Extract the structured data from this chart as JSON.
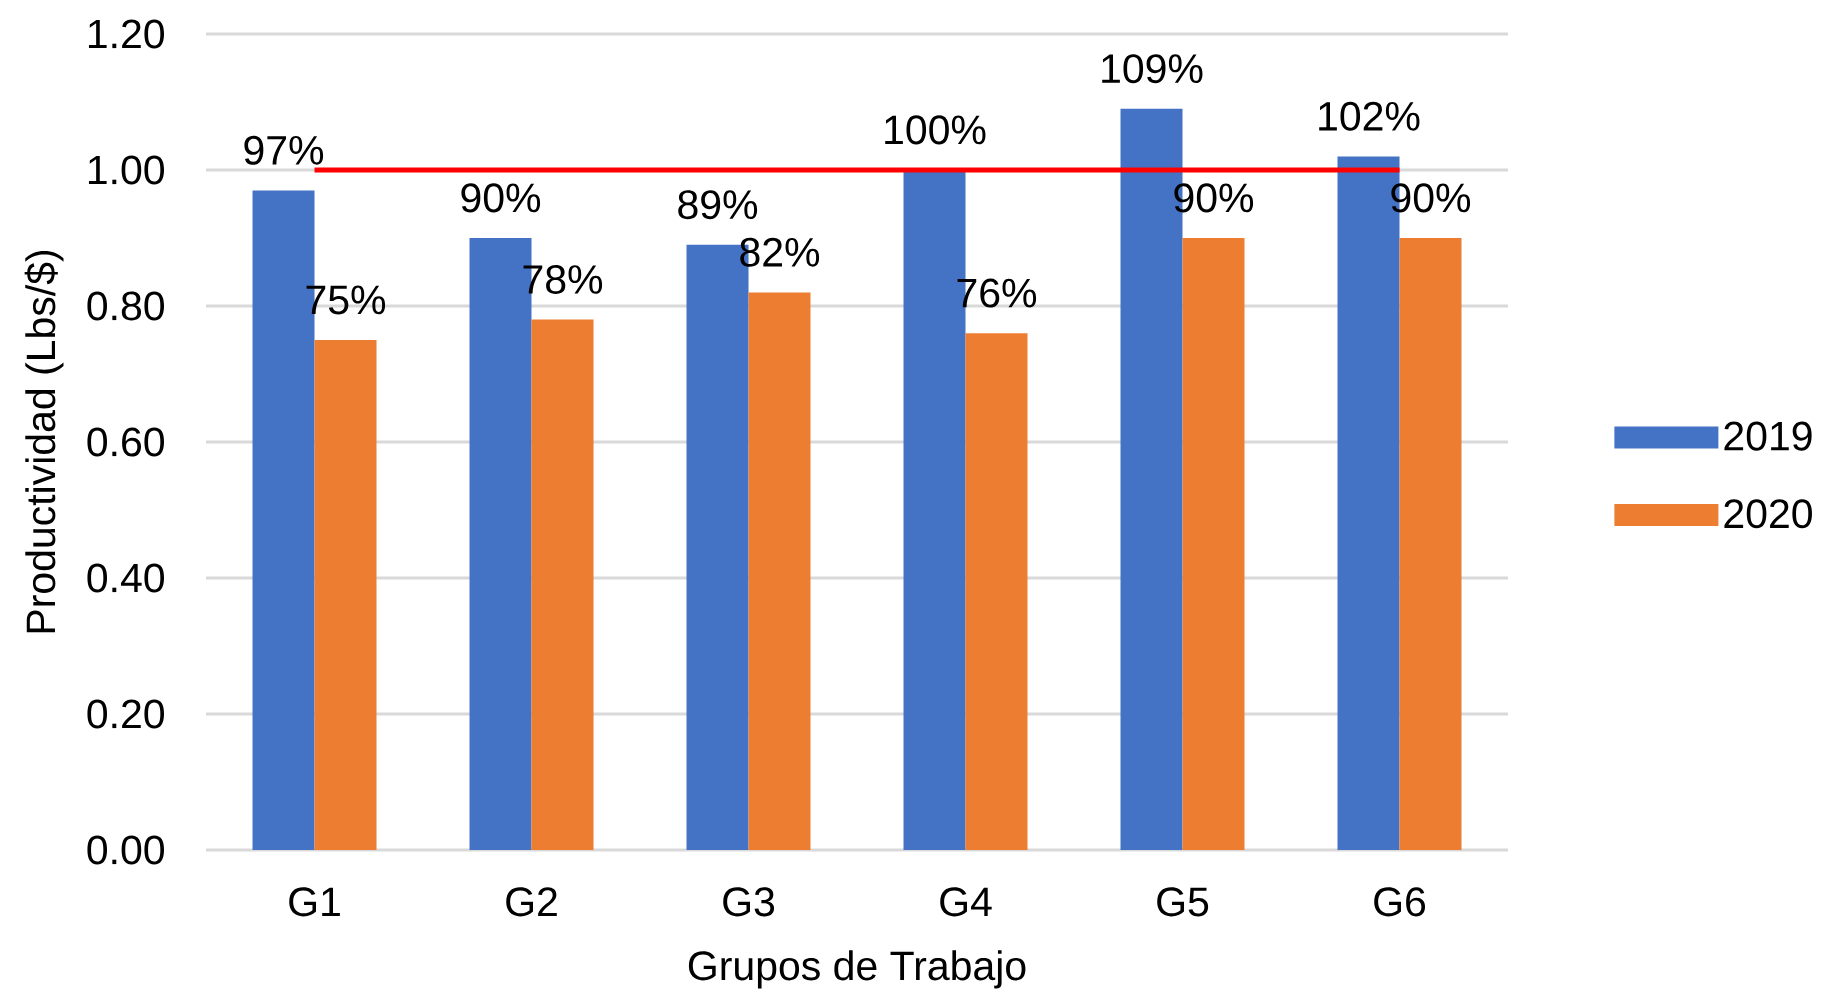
{
  "chart_data": {
    "type": "bar",
    "xlabel": "Grupos de Trabajo",
    "ylabel": "Productividad (Lbs/$)",
    "categories": [
      "G1",
      "G2",
      "G3",
      "G4",
      "G5",
      "G6"
    ],
    "series": [
      {
        "name": "2019",
        "color": "#4472c4",
        "values": [
          0.97,
          0.9,
          0.89,
          1.0,
          1.09,
          1.02
        ],
        "value_labels": [
          "97%",
          "90%",
          "89%",
          "100%",
          "109%",
          "102%"
        ]
      },
      {
        "name": "2020",
        "color": "#ed7d31",
        "values": [
          0.75,
          0.78,
          0.82,
          0.76,
          0.9,
          0.9
        ],
        "value_labels": [
          "75%",
          "78%",
          "82%",
          "76%",
          "90%",
          "90%"
        ]
      },
      {
        "type": "line",
        "color": "#ff0000",
        "values": [
          1.0,
          1.0,
          1.0,
          1.0,
          1.0,
          1.0
        ]
      }
    ],
    "ylim": [
      0,
      1.2
    ],
    "yticks": [
      {
        "value": 0,
        "label": "0.00"
      },
      {
        "value": 0.2,
        "label": "0.20"
      },
      {
        "value": 0.4,
        "label": "0.40"
      },
      {
        "value": 0.6,
        "label": "0.60"
      },
      {
        "value": 0.8,
        "label": "0.80"
      },
      {
        "value": 1.0,
        "label": "1.00"
      },
      {
        "value": 1.2,
        "label": "1.20"
      }
    ],
    "grid": "y",
    "legend": "right"
  }
}
